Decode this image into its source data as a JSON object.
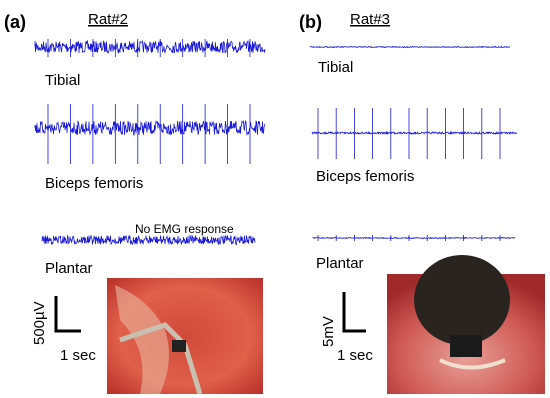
{
  "panel_a": {
    "label": "(a)",
    "subject": "Rat#2",
    "traces": [
      "Tibial",
      "Biceps femoris",
      "Plantar"
    ],
    "annotation": "No EMG response",
    "scale_v": "500µV",
    "scale_t": "1 sec"
  },
  "panel_b": {
    "label": "(b)",
    "subject": "Rat#3",
    "traces": [
      "Tibial",
      "Biceps femoris",
      "Plantar"
    ],
    "scale_v": "5mV",
    "scale_t": "1 sec"
  }
}
